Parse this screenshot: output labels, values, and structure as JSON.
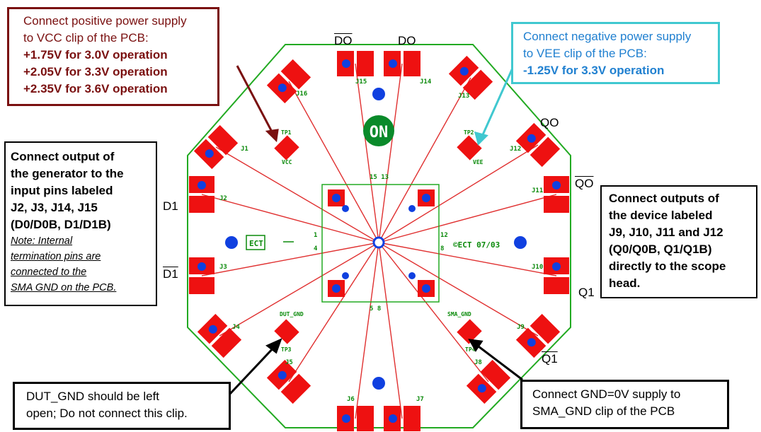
{
  "callouts": {
    "vcc": {
      "line1": "Connect positive power supply",
      "line2": "to VCC clip of the PCB:",
      "line3": "+1.75V for 3.0V operation",
      "line4": "+2.05V for 3.3V operation",
      "line5": "+2.35V for 3.6V operation",
      "color": "#7a1010"
    },
    "vee": {
      "line1": "Connect negative power supply",
      "line2": "to VEE clip of the PCB:",
      "line3": "-1.25V for 3.3V operation",
      "color": "#2080d0",
      "border_color": "#40c8d0"
    },
    "generator": {
      "line1": "Connect output of",
      "line2": "the generator to the",
      "line3": "input pins labeled",
      "line4": "J2, J3, J14, J15",
      "line5": "(D0/D0B, D1/D1B)",
      "note1": "Note: Internal",
      "note2": "termination pins are",
      "note3": "connected to the",
      "note4": "SMA GND on the PCB."
    },
    "outputs": {
      "line1": "Connect outputs of",
      "line2": "the device labeled",
      "line3": "J9, J10, J11 and J12",
      "line4": "(Q0/Q0B, Q1/Q1B)",
      "line5": "directly to the scope",
      "line6": "head."
    },
    "dut_gnd": {
      "line1": "DUT_GND should be left",
      "line2": "open; Do not connect this clip."
    },
    "sma_gnd": {
      "line1": "Connect GND=0V supply to",
      "line2": "SMA_GND clip of the PCB"
    }
  },
  "signal_labels": {
    "d0b": "DO",
    "d0": "DO",
    "q0": "QO",
    "q0b": "QO",
    "d1": "D1",
    "d1b": "D1",
    "q1": "Q1",
    "q1b": "Q1"
  },
  "pcb": {
    "connectors": [
      "J1",
      "J2",
      "J3",
      "J4",
      "J5",
      "J6",
      "J7",
      "J8",
      "J9",
      "J10",
      "J11",
      "J12",
      "J13",
      "J14",
      "J15",
      "J16"
    ],
    "test_points": {
      "tp1": "TP1",
      "tp2": "TP2",
      "tp3": "TP3",
      "tp4": "TP4",
      "vcc": "VCC",
      "vee": "VEE",
      "dut_gnd": "DUT_GND",
      "sma_gnd": "SMA_GND"
    },
    "logo": "ON",
    "board_text": "©ECT 07/03",
    "pin_top": "15 13",
    "pin_bottom": "5 8",
    "pin_left_a": "1",
    "pin_left_b": "4",
    "pin_right_a": "12",
    "pin_right_b": "8",
    "ect": "ECT",
    "colors": {
      "outline": "#22aa22",
      "trace": "#e03030",
      "pad": "#ee1111",
      "via": "#1040e0",
      "silk": "#0a8a0a",
      "logo_bg": "#0a8a2a"
    }
  }
}
